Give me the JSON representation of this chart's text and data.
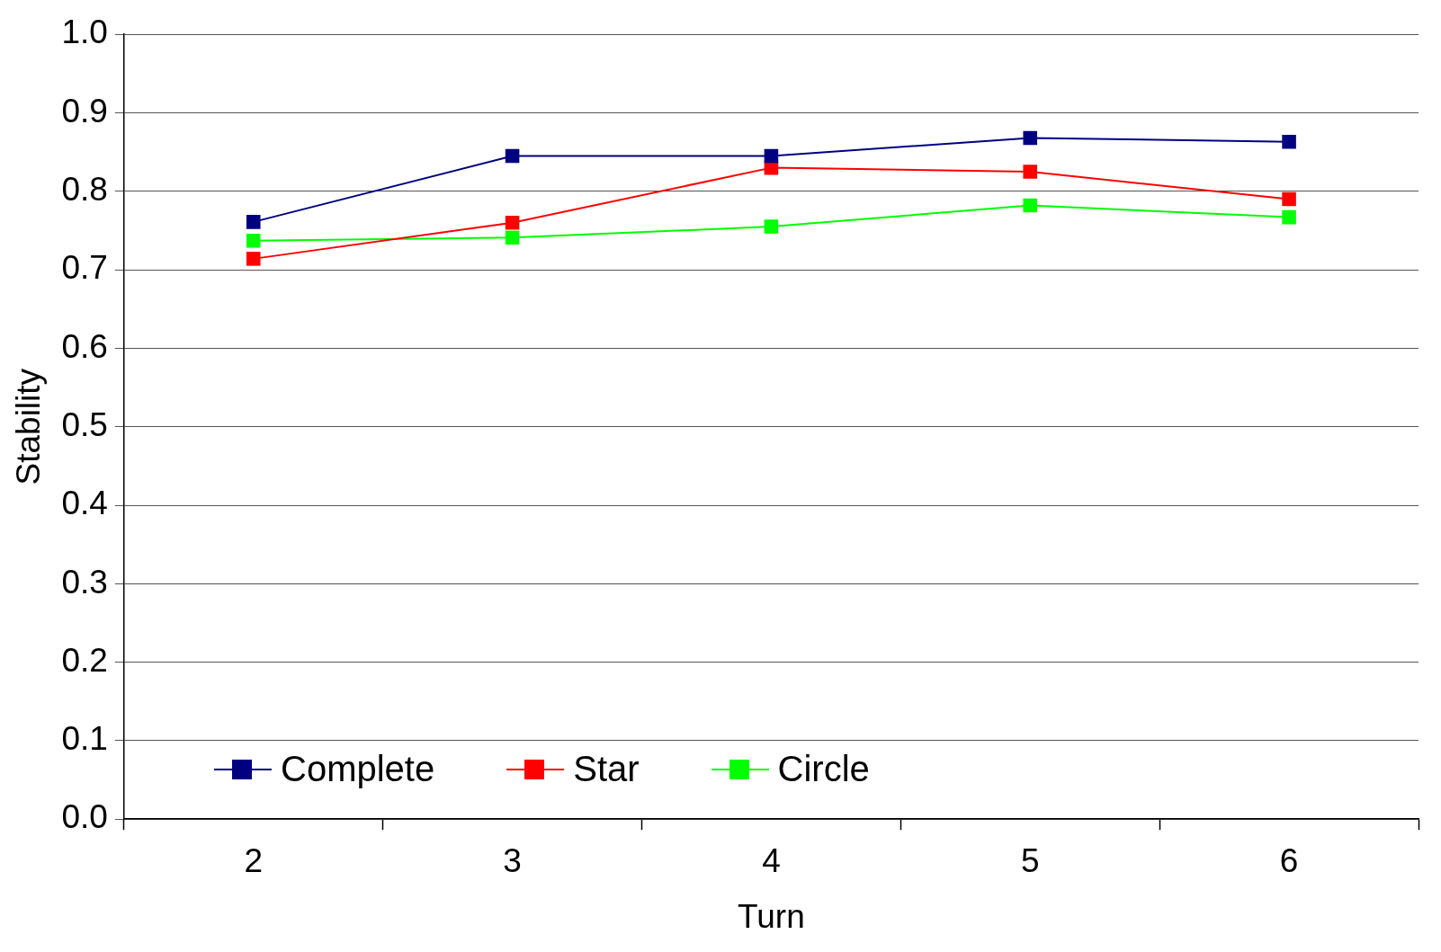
{
  "chart_data": {
    "type": "line",
    "xlabel": "Turn",
    "ylabel": "Stability",
    "categories": [
      "2",
      "3",
      "4",
      "5",
      "6"
    ],
    "series": [
      {
        "name": "Complete",
        "color": "#000080",
        "values": [
          0.761,
          0.845,
          0.845,
          0.868,
          0.863
        ]
      },
      {
        "name": "Star",
        "color": "#ff0000",
        "values": [
          0.714,
          0.76,
          0.83,
          0.825,
          0.79
        ]
      },
      {
        "name": "Circle",
        "color": "#00ff00",
        "values": [
          0.737,
          0.741,
          0.755,
          0.782,
          0.767
        ]
      }
    ],
    "ylim": [
      0,
      1
    ],
    "yticks": [
      {
        "value": 0,
        "label": "0.0"
      },
      {
        "value": 0.1,
        "label": "0.1"
      },
      {
        "value": 0.2,
        "label": "0.2"
      },
      {
        "value": 0.3,
        "label": "0.3"
      },
      {
        "value": 0.4,
        "label": "0.4"
      },
      {
        "value": 0.5,
        "label": "0.5"
      },
      {
        "value": 0.6,
        "label": "0.6"
      },
      {
        "value": 0.7,
        "label": "0.7"
      },
      {
        "value": 0.8,
        "label": "0.8"
      },
      {
        "value": 0.9,
        "label": "0.9"
      },
      {
        "value": 1,
        "label": "1.0"
      }
    ],
    "grid": "y",
    "legend": "bottom left",
    "marker": "square",
    "line_style": "solid"
  }
}
